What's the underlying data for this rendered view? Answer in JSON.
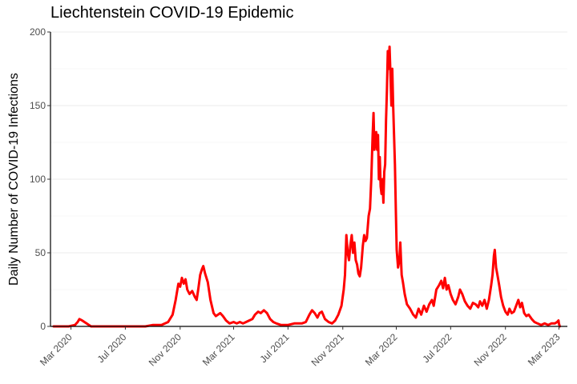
{
  "chart_data": {
    "type": "line",
    "title": "Liechtenstein COVID-19 Epidemic",
    "xlabel": "",
    "ylabel": "Daily Number of COVID-19 Infections",
    "ylim": [
      0,
      200
    ],
    "xlim": [
      "2020-01-15",
      "2023-03-20"
    ],
    "y_ticks": [
      0,
      50,
      100,
      150,
      200
    ],
    "x_ticks": [
      {
        "date": "2020-03-01",
        "label": "Mar 2020"
      },
      {
        "date": "2020-07-01",
        "label": "Jul 2020"
      },
      {
        "date": "2020-11-01",
        "label": "Nov 2020"
      },
      {
        "date": "2021-03-01",
        "label": "Mar 2021"
      },
      {
        "date": "2021-07-01",
        "label": "Jul 2021"
      },
      {
        "date": "2021-11-01",
        "label": "Nov 2021"
      },
      {
        "date": "2022-03-01",
        "label": "Mar 2022"
      },
      {
        "date": "2022-07-01",
        "label": "Jul 2022"
      },
      {
        "date": "2022-11-01",
        "label": "Nov 2022"
      },
      {
        "date": "2023-03-01",
        "label": "Mar 2023"
      }
    ],
    "grid": "horizontal",
    "legend": "none",
    "series": [
      {
        "color": "#ff0000",
        "points": [
          [
            "2020-01-22",
            0
          ],
          [
            "2020-02-25",
            0
          ],
          [
            "2020-03-10",
            1
          ],
          [
            "2020-03-16",
            3
          ],
          [
            "2020-03-20",
            5
          ],
          [
            "2020-03-26",
            4
          ],
          [
            "2020-04-05",
            2
          ],
          [
            "2020-04-15",
            0
          ],
          [
            "2020-05-15",
            0
          ],
          [
            "2020-07-01",
            0
          ],
          [
            "2020-08-15",
            0
          ],
          [
            "2020-09-01",
            1
          ],
          [
            "2020-09-20",
            1
          ],
          [
            "2020-10-05",
            3
          ],
          [
            "2020-10-15",
            8
          ],
          [
            "2020-10-22",
            18
          ],
          [
            "2020-10-28",
            29
          ],
          [
            "2020-11-01",
            27
          ],
          [
            "2020-11-05",
            33
          ],
          [
            "2020-11-09",
            29
          ],
          [
            "2020-11-13",
            32
          ],
          [
            "2020-11-17",
            25
          ],
          [
            "2020-11-22",
            22
          ],
          [
            "2020-11-28",
            24
          ],
          [
            "2020-12-04",
            20
          ],
          [
            "2020-12-08",
            18
          ],
          [
            "2020-12-12",
            26
          ],
          [
            "2020-12-16",
            35
          ],
          [
            "2020-12-20",
            39
          ],
          [
            "2020-12-23",
            41
          ],
          [
            "2020-12-27",
            36
          ],
          [
            "2021-01-02",
            30
          ],
          [
            "2021-01-08",
            18
          ],
          [
            "2021-01-15",
            9
          ],
          [
            "2021-01-20",
            7
          ],
          [
            "2021-01-25",
            8
          ],
          [
            "2021-01-30",
            9
          ],
          [
            "2021-02-05",
            7
          ],
          [
            "2021-02-12",
            4
          ],
          [
            "2021-02-20",
            2
          ],
          [
            "2021-03-01",
            3
          ],
          [
            "2021-03-08",
            2
          ],
          [
            "2021-03-15",
            3
          ],
          [
            "2021-03-22",
            2
          ],
          [
            "2021-03-29",
            3
          ],
          [
            "2021-04-05",
            4
          ],
          [
            "2021-04-12",
            5
          ],
          [
            "2021-04-18",
            8
          ],
          [
            "2021-04-25",
            10
          ],
          [
            "2021-05-01",
            9
          ],
          [
            "2021-05-08",
            11
          ],
          [
            "2021-05-15",
            9
          ],
          [
            "2021-05-22",
            5
          ],
          [
            "2021-05-29",
            3
          ],
          [
            "2021-06-05",
            2
          ],
          [
            "2021-06-15",
            1
          ],
          [
            "2021-07-01",
            1
          ],
          [
            "2021-07-15",
            2
          ],
          [
            "2021-08-01",
            2
          ],
          [
            "2021-08-10",
            3
          ],
          [
            "2021-08-18",
            8
          ],
          [
            "2021-08-24",
            11
          ],
          [
            "2021-08-30",
            9
          ],
          [
            "2021-09-05",
            6
          ],
          [
            "2021-09-10",
            9
          ],
          [
            "2021-09-15",
            10
          ],
          [
            "2021-09-22",
            5
          ],
          [
            "2021-09-30",
            3
          ],
          [
            "2021-10-08",
            2
          ],
          [
            "2021-10-15",
            4
          ],
          [
            "2021-10-22",
            8
          ],
          [
            "2021-10-29",
            14
          ],
          [
            "2021-11-03",
            25
          ],
          [
            "2021-11-06",
            35
          ],
          [
            "2021-11-09",
            62
          ],
          [
            "2021-11-12",
            50
          ],
          [
            "2021-11-15",
            45
          ],
          [
            "2021-11-18",
            55
          ],
          [
            "2021-11-21",
            62
          ],
          [
            "2021-11-24",
            50
          ],
          [
            "2021-11-27",
            57
          ],
          [
            "2021-11-30",
            45
          ],
          [
            "2021-12-03",
            42
          ],
          [
            "2021-12-06",
            36
          ],
          [
            "2021-12-09",
            34
          ],
          [
            "2021-12-12",
            40
          ],
          [
            "2021-12-16",
            55
          ],
          [
            "2021-12-19",
            62
          ],
          [
            "2021-12-22",
            58
          ],
          [
            "2021-12-25",
            60
          ],
          [
            "2021-12-29",
            75
          ],
          [
            "2022-01-01",
            80
          ],
          [
            "2022-01-04",
            100
          ],
          [
            "2022-01-07",
            130
          ],
          [
            "2022-01-09",
            145
          ],
          [
            "2022-01-11",
            120
          ],
          [
            "2022-01-13",
            125
          ],
          [
            "2022-01-15",
            132
          ],
          [
            "2022-01-17",
            120
          ],
          [
            "2022-01-19",
            130
          ],
          [
            "2022-01-21",
            100
          ],
          [
            "2022-01-23",
            115
          ],
          [
            "2022-01-25",
            95
          ],
          [
            "2022-01-27",
            90
          ],
          [
            "2022-01-29",
            100
          ],
          [
            "2022-01-31",
            84
          ],
          [
            "2022-02-02",
            105
          ],
          [
            "2022-02-04",
            110
          ],
          [
            "2022-02-06",
            140
          ],
          [
            "2022-02-08",
            160
          ],
          [
            "2022-02-10",
            187
          ],
          [
            "2022-02-12",
            175
          ],
          [
            "2022-02-14",
            190
          ],
          [
            "2022-02-16",
            170
          ],
          [
            "2022-02-18",
            150
          ],
          [
            "2022-02-20",
            175
          ],
          [
            "2022-02-22",
            150
          ],
          [
            "2022-02-24",
            130
          ],
          [
            "2022-02-26",
            110
          ],
          [
            "2022-02-28",
            80
          ],
          [
            "2022-03-02",
            52
          ],
          [
            "2022-03-05",
            40
          ],
          [
            "2022-03-08",
            45
          ],
          [
            "2022-03-10",
            57
          ],
          [
            "2022-03-13",
            35
          ],
          [
            "2022-03-16",
            30
          ],
          [
            "2022-03-20",
            22
          ],
          [
            "2022-03-25",
            15
          ],
          [
            "2022-04-01",
            12
          ],
          [
            "2022-04-08",
            8
          ],
          [
            "2022-04-14",
            6
          ],
          [
            "2022-04-20",
            12
          ],
          [
            "2022-04-26",
            8
          ],
          [
            "2022-05-02",
            14
          ],
          [
            "2022-05-08",
            10
          ],
          [
            "2022-05-14",
            15
          ],
          [
            "2022-05-20",
            18
          ],
          [
            "2022-05-24",
            14
          ],
          [
            "2022-05-30",
            25
          ],
          [
            "2022-06-05",
            28
          ],
          [
            "2022-06-10",
            31
          ],
          [
            "2022-06-14",
            26
          ],
          [
            "2022-06-18",
            33
          ],
          [
            "2022-06-22",
            25
          ],
          [
            "2022-06-26",
            28
          ],
          [
            "2022-07-01",
            22
          ],
          [
            "2022-07-06",
            18
          ],
          [
            "2022-07-12",
            15
          ],
          [
            "2022-07-18",
            20
          ],
          [
            "2022-07-22",
            25
          ],
          [
            "2022-07-27",
            22
          ],
          [
            "2022-08-02",
            17
          ],
          [
            "2022-08-08",
            14
          ],
          [
            "2022-08-14",
            12
          ],
          [
            "2022-08-20",
            16
          ],
          [
            "2022-08-26",
            15
          ],
          [
            "2022-09-01",
            13
          ],
          [
            "2022-09-05",
            17
          ],
          [
            "2022-09-10",
            14
          ],
          [
            "2022-09-15",
            18
          ],
          [
            "2022-09-20",
            12
          ],
          [
            "2022-09-25",
            18
          ],
          [
            "2022-09-30",
            28
          ],
          [
            "2022-10-03",
            35
          ],
          [
            "2022-10-06",
            48
          ],
          [
            "2022-10-08",
            52
          ],
          [
            "2022-10-11",
            40
          ],
          [
            "2022-10-14",
            35
          ],
          [
            "2022-10-18",
            28
          ],
          [
            "2022-10-22",
            20
          ],
          [
            "2022-10-27",
            14
          ],
          [
            "2022-11-01",
            10
          ],
          [
            "2022-11-06",
            8
          ],
          [
            "2022-11-10",
            12
          ],
          [
            "2022-11-15",
            9
          ],
          [
            "2022-11-20",
            10
          ],
          [
            "2022-11-25",
            14
          ],
          [
            "2022-11-30",
            18
          ],
          [
            "2022-12-04",
            13
          ],
          [
            "2022-12-08",
            16
          ],
          [
            "2022-12-13",
            9
          ],
          [
            "2022-12-18",
            7
          ],
          [
            "2022-12-23",
            8
          ],
          [
            "2022-12-30",
            5
          ],
          [
            "2023-01-05",
            3
          ],
          [
            "2023-01-12",
            2
          ],
          [
            "2023-01-20",
            1
          ],
          [
            "2023-01-28",
            2
          ],
          [
            "2023-02-05",
            1
          ],
          [
            "2023-02-12",
            2
          ],
          [
            "2023-02-20",
            2
          ],
          [
            "2023-02-25",
            3
          ],
          [
            "2023-02-28",
            4
          ],
          [
            "2023-03-01",
            2
          ],
          [
            "2023-03-03",
            0
          ]
        ]
      }
    ]
  }
}
